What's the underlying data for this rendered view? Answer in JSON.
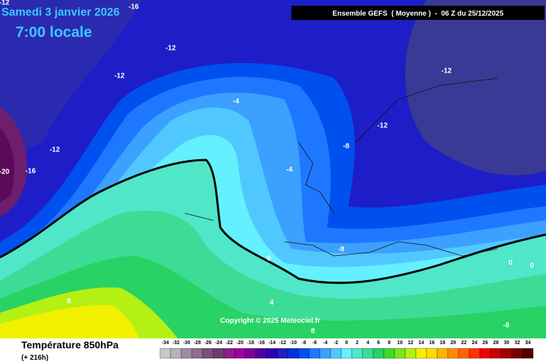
{
  "header": {
    "date": "Samedi 3 janvier 2026",
    "time": "7:00 locale",
    "model": "Ensemble GEFS  ( Moyenne )  -  06 Z du 25/12/2025"
  },
  "map": {
    "contour_labels": [
      -12,
      -16,
      -12,
      -12,
      -12,
      -4,
      -12,
      -8,
      -12,
      -20,
      -16,
      -4,
      0,
      -8,
      4,
      8,
      0,
      0,
      -8,
      8
    ]
  },
  "copyright": "Copyright © 2025 Meteociel.fr",
  "legend": {
    "title": "Température 850hPa",
    "lead": "(+ 216h)",
    "scale": [
      -34,
      -32,
      -30,
      -28,
      -26,
      -24,
      -22,
      -20,
      -18,
      -16,
      -14,
      -12,
      -10,
      -8,
      -6,
      -4,
      -2,
      0,
      2,
      4,
      6,
      8,
      10,
      12,
      14,
      16,
      18,
      20,
      22,
      24,
      26,
      28,
      30,
      32,
      34
    ],
    "colors": [
      "#c8c8c8",
      "#b4b4b4",
      "#a08ca0",
      "#8c6e8c",
      "#785078",
      "#6e3c6e",
      "#8c1e8c",
      "#a000a0",
      "#7800a0",
      "#5000a0",
      "#3200b4",
      "#1e1ec8",
      "#0032dc",
      "#0050f0",
      "#1e78ff",
      "#3ca0ff",
      "#50c8ff",
      "#64f0ff",
      "#50e6c8",
      "#3cdc96",
      "#28d264",
      "#3cdc28",
      "#78e61e",
      "#b4f014",
      "#f0f000",
      "#ffdc00",
      "#ffb400",
      "#ff8c00",
      "#ff6400",
      "#ff3200",
      "#f00000",
      "#c80000",
      "#a00000",
      "#780000",
      "#500000"
    ]
  }
}
